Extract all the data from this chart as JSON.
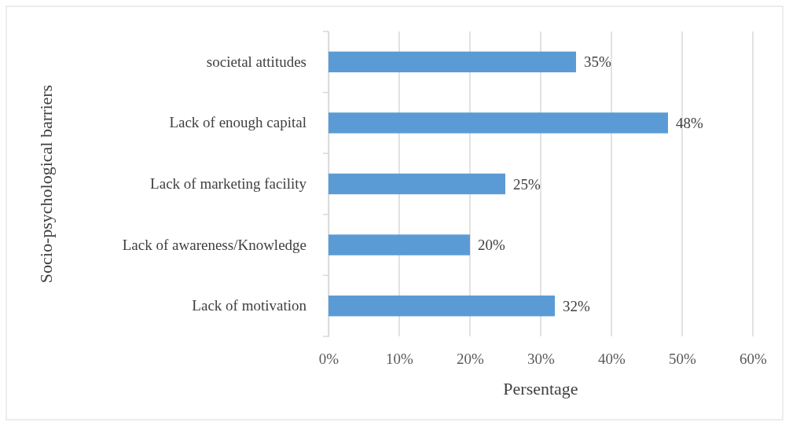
{
  "chart_data": {
    "type": "bar",
    "orientation": "horizontal",
    "ylabel": "Socio-psychological barriers",
    "xlabel": "Persentage",
    "categories": [
      "societal attitudes",
      "Lack of enough capital",
      "Lack of marketing facility",
      "Lack of awareness/Knowledge",
      "Lack of motivation"
    ],
    "values": [
      35,
      48,
      25,
      20,
      32
    ],
    "value_labels": [
      "35%",
      "48%",
      "25%",
      "20%",
      "32%"
    ],
    "color": "#5b9bd5",
    "xlim": [
      0,
      60
    ],
    "xticks": [
      {
        "value": 0,
        "label": "0%"
      },
      {
        "value": 10,
        "label": "10%"
      },
      {
        "value": 20,
        "label": "20%"
      },
      {
        "value": 30,
        "label": "30%"
      },
      {
        "value": 40,
        "label": "40%"
      },
      {
        "value": 50,
        "label": "50%"
      },
      {
        "value": 60,
        "label": "60%"
      }
    ],
    "grid": "x"
  }
}
